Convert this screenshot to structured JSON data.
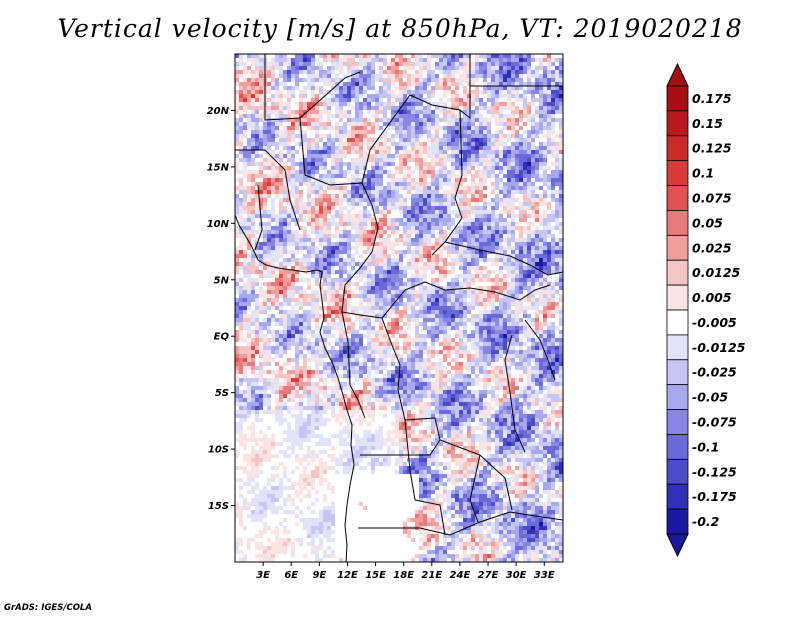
{
  "title": "Vertical velocity [m/s] at 850hPa, VT: 2019020218",
  "credit": "GrADS: IGES/COLA",
  "map": {
    "lon_range": [
      0,
      35
    ],
    "lat_range": [
      -20,
      25
    ],
    "lat_ticks": [
      {
        "lat": 20,
        "label": "20N"
      },
      {
        "lat": 15,
        "label": "15N"
      },
      {
        "lat": 10,
        "label": "10N"
      },
      {
        "lat": 5,
        "label": "5N"
      },
      {
        "lat": 0,
        "label": "EQ"
      },
      {
        "lat": -5,
        "label": "5S"
      },
      {
        "lat": -10,
        "label": "10S"
      },
      {
        "lat": -15,
        "label": "15S"
      }
    ],
    "lon_ticks": [
      {
        "lon": 3,
        "label": "3E"
      },
      {
        "lon": 6,
        "label": "6E"
      },
      {
        "lon": 9,
        "label": "9E"
      },
      {
        "lon": 12,
        "label": "12E"
      },
      {
        "lon": 15,
        "label": "15E"
      },
      {
        "lon": 18,
        "label": "18E"
      },
      {
        "lon": 21,
        "label": "21E"
      },
      {
        "lon": 24,
        "label": "24E"
      },
      {
        "lon": 27,
        "label": "27E"
      },
      {
        "lon": 30,
        "label": "30E"
      },
      {
        "lon": 33,
        "label": "33E"
      }
    ]
  },
  "colorbar": {
    "levels": [
      {
        "label": "0.175",
        "color": "#a50f15"
      },
      {
        "label": "0.15",
        "color": "#b8191e"
      },
      {
        "label": "0.125",
        "color": "#c92a2a"
      },
      {
        "label": "0.1",
        "color": "#d93a3a"
      },
      {
        "label": "0.075",
        "color": "#e05252"
      },
      {
        "label": "0.05",
        "color": "#e77a7a"
      },
      {
        "label": "0.025",
        "color": "#f09e9e"
      },
      {
        "label": "0.0125",
        "color": "#f7c4c4"
      },
      {
        "label": "0.005",
        "color": "#fce3e3"
      },
      {
        "label": "-0.005",
        "color": "#ffffff"
      },
      {
        "label": "-0.0125",
        "color": "#e2e2fa"
      },
      {
        "label": "-0.025",
        "color": "#c6c6f4"
      },
      {
        "label": "-0.05",
        "color": "#a8a8ee"
      },
      {
        "label": "-0.075",
        "color": "#8888e4"
      },
      {
        "label": "-0.1",
        "color": "#6a6ad8"
      },
      {
        "label": "-0.125",
        "color": "#4c4cc8"
      },
      {
        "label": "-0.175",
        "color": "#3030b4"
      },
      {
        "label": "-0.2",
        "color": "#1a1aa0"
      }
    ],
    "top_color": "#a50f15",
    "mid_color": "#ffffff",
    "bottom_color": "#1a1a9e"
  }
}
